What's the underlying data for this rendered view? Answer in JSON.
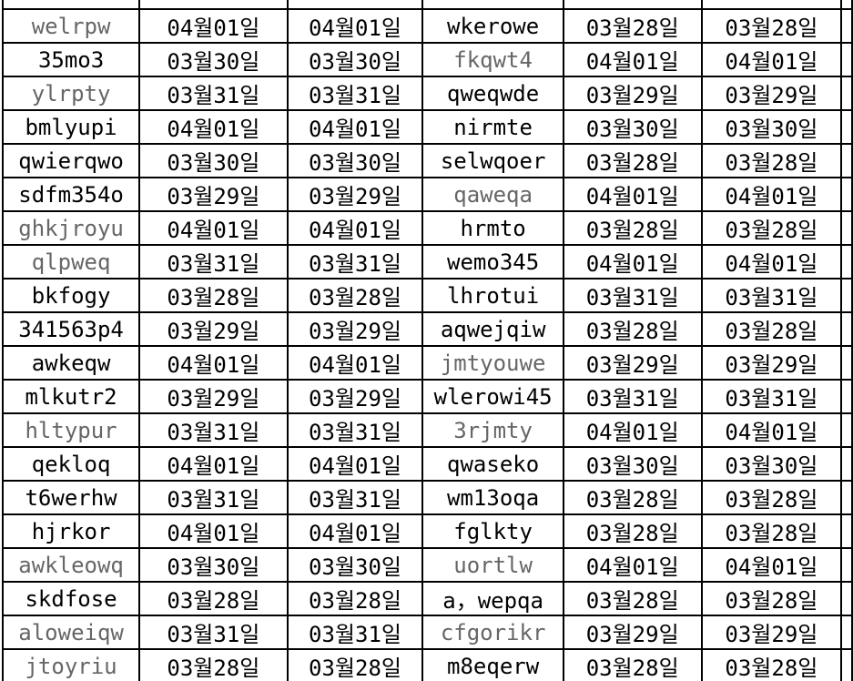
{
  "table": {
    "description_colors": {
      "background": "#ffffff",
      "border": "#000000",
      "text_normal": "#000000",
      "text_muted": "#666666"
    },
    "column_roles": [
      "name",
      "date",
      "date",
      "name",
      "date",
      "date"
    ],
    "rows": [
      {
        "cells": [
          {
            "text": "welrpw",
            "muted": true
          },
          {
            "text": "04월01일",
            "muted": false
          },
          {
            "text": "04월01일",
            "muted": false
          },
          {
            "text": "wkerowe",
            "muted": false
          },
          {
            "text": "03월28일",
            "muted": false
          },
          {
            "text": "03월28일",
            "muted": false
          }
        ]
      },
      {
        "cells": [
          {
            "text": "35mo3",
            "muted": false
          },
          {
            "text": "03월30일",
            "muted": false
          },
          {
            "text": "03월30일",
            "muted": false
          },
          {
            "text": "fkqwt4",
            "muted": true
          },
          {
            "text": "04월01일",
            "muted": false
          },
          {
            "text": "04월01일",
            "muted": false
          }
        ]
      },
      {
        "cells": [
          {
            "text": "ylrpty",
            "muted": true
          },
          {
            "text": "03월31일",
            "muted": false
          },
          {
            "text": "03월31일",
            "muted": false
          },
          {
            "text": "qweqwde",
            "muted": false
          },
          {
            "text": "03월29일",
            "muted": false
          },
          {
            "text": "03월29일",
            "muted": false
          }
        ]
      },
      {
        "cells": [
          {
            "text": "bmlyupi",
            "muted": false
          },
          {
            "text": "04월01일",
            "muted": false
          },
          {
            "text": "04월01일",
            "muted": false
          },
          {
            "text": "nirmte",
            "muted": false
          },
          {
            "text": "03월30일",
            "muted": false
          },
          {
            "text": "03월30일",
            "muted": false
          }
        ]
      },
      {
        "cells": [
          {
            "text": "qwierqwo",
            "muted": false
          },
          {
            "text": "03월30일",
            "muted": false
          },
          {
            "text": "03월30일",
            "muted": false
          },
          {
            "text": "selwqoer",
            "muted": false
          },
          {
            "text": "03월28일",
            "muted": false
          },
          {
            "text": "03월28일",
            "muted": false
          }
        ]
      },
      {
        "cells": [
          {
            "text": "sdfm354o",
            "muted": false
          },
          {
            "text": "03월29일",
            "muted": false
          },
          {
            "text": "03월29일",
            "muted": false
          },
          {
            "text": "qaweqa",
            "muted": true
          },
          {
            "text": "04월01일",
            "muted": false
          },
          {
            "text": "04월01일",
            "muted": false
          }
        ]
      },
      {
        "cells": [
          {
            "text": "ghkjroyu",
            "muted": true
          },
          {
            "text": "04월01일",
            "muted": false
          },
          {
            "text": "04월01일",
            "muted": false
          },
          {
            "text": "hrmto",
            "muted": false
          },
          {
            "text": "03월28일",
            "muted": false
          },
          {
            "text": "03월28일",
            "muted": false
          }
        ]
      },
      {
        "cells": [
          {
            "text": "qlpweq",
            "muted": true
          },
          {
            "text": "03월31일",
            "muted": false
          },
          {
            "text": "03월31일",
            "muted": false
          },
          {
            "text": "wemo345",
            "muted": false
          },
          {
            "text": "04월01일",
            "muted": false
          },
          {
            "text": "04월01일",
            "muted": false
          }
        ]
      },
      {
        "cells": [
          {
            "text": "bkfogy",
            "muted": false
          },
          {
            "text": "03월28일",
            "muted": false
          },
          {
            "text": "03월28일",
            "muted": false
          },
          {
            "text": "lhrotui",
            "muted": false
          },
          {
            "text": "03월31일",
            "muted": false
          },
          {
            "text": "03월31일",
            "muted": false
          }
        ]
      },
      {
        "cells": [
          {
            "text": "341563p4",
            "muted": false
          },
          {
            "text": "03월29일",
            "muted": false
          },
          {
            "text": "03월29일",
            "muted": false
          },
          {
            "text": "aqwejqiw",
            "muted": false
          },
          {
            "text": "03월28일",
            "muted": false
          },
          {
            "text": "03월28일",
            "muted": false
          }
        ]
      },
      {
        "cells": [
          {
            "text": "awkeqw",
            "muted": false
          },
          {
            "text": "04월01일",
            "muted": false
          },
          {
            "text": "04월01일",
            "muted": false
          },
          {
            "text": "jmtyouwe",
            "muted": true
          },
          {
            "text": "03월29일",
            "muted": false
          },
          {
            "text": "03월29일",
            "muted": false
          }
        ]
      },
      {
        "cells": [
          {
            "text": "mlkutr2",
            "muted": false
          },
          {
            "text": "03월29일",
            "muted": false
          },
          {
            "text": "03월29일",
            "muted": false
          },
          {
            "text": "wlerowi45",
            "muted": false
          },
          {
            "text": "03월31일",
            "muted": false
          },
          {
            "text": "03월31일",
            "muted": false
          }
        ]
      },
      {
        "cells": [
          {
            "text": "hltypur",
            "muted": true
          },
          {
            "text": "03월31일",
            "muted": false
          },
          {
            "text": "03월31일",
            "muted": false
          },
          {
            "text": "3rjmty",
            "muted": true
          },
          {
            "text": "04월01일",
            "muted": false
          },
          {
            "text": "04월01일",
            "muted": false
          }
        ]
      },
      {
        "cells": [
          {
            "text": "qekloq",
            "muted": false
          },
          {
            "text": "04월01일",
            "muted": false
          },
          {
            "text": "04월01일",
            "muted": false
          },
          {
            "text": "qwaseko",
            "muted": false
          },
          {
            "text": "03월30일",
            "muted": false
          },
          {
            "text": "03월30일",
            "muted": false
          }
        ]
      },
      {
        "cells": [
          {
            "text": "t6werhw",
            "muted": false
          },
          {
            "text": "03월31일",
            "muted": false
          },
          {
            "text": "03월31일",
            "muted": false
          },
          {
            "text": "wm13oqa",
            "muted": false
          },
          {
            "text": "03월28일",
            "muted": false
          },
          {
            "text": "03월28일",
            "muted": false
          }
        ]
      },
      {
        "cells": [
          {
            "text": "hjrkor",
            "muted": false
          },
          {
            "text": "04월01일",
            "muted": false
          },
          {
            "text": "04월01일",
            "muted": false
          },
          {
            "text": "fglkty",
            "muted": false
          },
          {
            "text": "03월28일",
            "muted": false
          },
          {
            "text": "03월28일",
            "muted": false
          }
        ]
      },
      {
        "cells": [
          {
            "text": "awkleowq",
            "muted": true
          },
          {
            "text": "03월30일",
            "muted": false
          },
          {
            "text": "03월30일",
            "muted": false
          },
          {
            "text": "uortlw",
            "muted": true
          },
          {
            "text": "04월01일",
            "muted": false
          },
          {
            "text": "04월01일",
            "muted": false
          }
        ]
      },
      {
        "cells": [
          {
            "text": "skdfose",
            "muted": false
          },
          {
            "text": "03월28일",
            "muted": false
          },
          {
            "text": "03월28일",
            "muted": false
          },
          {
            "text": "a，wepqa",
            "muted": false
          },
          {
            "text": "03월28일",
            "muted": false
          },
          {
            "text": "03월28일",
            "muted": false
          }
        ]
      },
      {
        "cells": [
          {
            "text": "aloweiqw",
            "muted": true
          },
          {
            "text": "03월31일",
            "muted": false
          },
          {
            "text": "03월31일",
            "muted": false
          },
          {
            "text": "cfgorikr",
            "muted": true
          },
          {
            "text": "03월29일",
            "muted": false
          },
          {
            "text": "03월29일",
            "muted": false
          }
        ]
      },
      {
        "cells": [
          {
            "text": "jtoyriu",
            "muted": true
          },
          {
            "text": "03월28일",
            "muted": false
          },
          {
            "text": "03월28일",
            "muted": false
          },
          {
            "text": "m8eqerw",
            "muted": false
          },
          {
            "text": "03월28일",
            "muted": false
          },
          {
            "text": "03월28일",
            "muted": false
          }
        ]
      }
    ]
  }
}
